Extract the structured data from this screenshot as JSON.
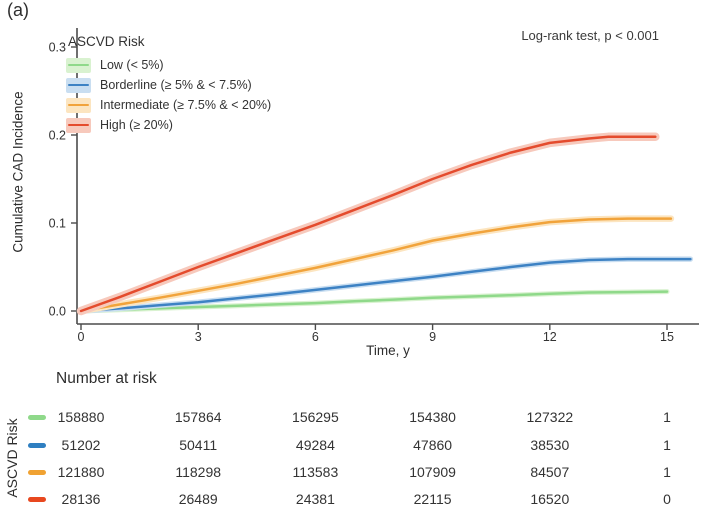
{
  "panel_label": "(a)",
  "chart_data": {
    "type": "line",
    "title": "",
    "xlabel": "Time, y",
    "ylabel": "Cumulative CAD Incidence",
    "legend_title": "ASCVD Risk",
    "legend_position": "top-left inside plot",
    "annotation": "Log-rank test, p < 0.001",
    "xlim": [
      0,
      15.8
    ],
    "ylim": [
      0,
      0.31
    ],
    "x_ticks": [
      "0",
      "3",
      "6",
      "9",
      "12",
      "15"
    ],
    "y_ticks": [
      "0.0",
      "0.1",
      "0.2",
      "0.3"
    ],
    "grid": false,
    "series": [
      {
        "name": "Low (< 5%)",
        "key": "low",
        "line_color": "#8fd98a",
        "band_color": "#d9f2d0",
        "points": [
          [
            0,
            0
          ],
          [
            1,
            0.0015
          ],
          [
            2,
            0.003
          ],
          [
            3,
            0.0045
          ],
          [
            4,
            0.006
          ],
          [
            5,
            0.0075
          ],
          [
            6,
            0.009
          ],
          [
            7,
            0.011
          ],
          [
            8,
            0.013
          ],
          [
            9,
            0.015
          ],
          [
            10,
            0.0165
          ],
          [
            11,
            0.018
          ],
          [
            12,
            0.0195
          ],
          [
            13,
            0.021
          ],
          [
            14,
            0.0215
          ],
          [
            15,
            0.022
          ]
        ]
      },
      {
        "name": "Borderline (≥ 5% & < 7.5%)",
        "key": "borderline",
        "line_color": "#3d82c4",
        "band_color": "#c9def1",
        "points": [
          [
            0,
            0
          ],
          [
            1,
            0.003
          ],
          [
            2,
            0.0065
          ],
          [
            3,
            0.01
          ],
          [
            4,
            0.0145
          ],
          [
            5,
            0.019
          ],
          [
            6,
            0.024
          ],
          [
            7,
            0.029
          ],
          [
            8,
            0.034
          ],
          [
            9,
            0.039
          ],
          [
            10,
            0.0445
          ],
          [
            11,
            0.05
          ],
          [
            12,
            0.055
          ],
          [
            13,
            0.058
          ],
          [
            14,
            0.059
          ],
          [
            15,
            0.059
          ],
          [
            15.6,
            0.059
          ]
        ]
      },
      {
        "name": "Intermediate (≥ 7.5% & < 20%)",
        "key": "intermediate",
        "line_color": "#f1a33b",
        "band_color": "#fce5c0",
        "points": [
          [
            0,
            0
          ],
          [
            1,
            0.0075
          ],
          [
            2,
            0.015
          ],
          [
            3,
            0.023
          ],
          [
            4,
            0.031
          ],
          [
            5,
            0.04
          ],
          [
            6,
            0.049
          ],
          [
            7,
            0.059
          ],
          [
            8,
            0.069
          ],
          [
            9,
            0.08
          ],
          [
            10,
            0.088
          ],
          [
            11,
            0.095
          ],
          [
            12,
            0.101
          ],
          [
            13,
            0.104
          ],
          [
            14,
            0.105
          ],
          [
            15.1,
            0.105
          ]
        ]
      },
      {
        "name": "High (≥ 20%)",
        "key": "high",
        "line_color": "#e44b2d",
        "band_color": "#f7c9bc",
        "points": [
          [
            0,
            0
          ],
          [
            1,
            0.016
          ],
          [
            2,
            0.033
          ],
          [
            3,
            0.05
          ],
          [
            4,
            0.066
          ],
          [
            5,
            0.082
          ],
          [
            6,
            0.098
          ],
          [
            7,
            0.115
          ],
          [
            8,
            0.132
          ],
          [
            9,
            0.15
          ],
          [
            10,
            0.166
          ],
          [
            11,
            0.18
          ],
          [
            12,
            0.191
          ],
          [
            13,
            0.196
          ],
          [
            13.5,
            0.198
          ],
          [
            14,
            0.198
          ],
          [
            14.7,
            0.198
          ]
        ]
      }
    ]
  },
  "risk_table": {
    "title": "Number at risk",
    "axis_label": "ASCVD Risk",
    "time_points": [
      0,
      3,
      6,
      9,
      12,
      15
    ],
    "rows": [
      {
        "group": "Low (< 5%)",
        "color": "#8fd98a",
        "values": [
          "158880",
          "157864",
          "156295",
          "154380",
          "127322",
          "1"
        ]
      },
      {
        "group": "Borderline (≥ 5% & < 7.5%)",
        "color": "#2f7fc1",
        "values": [
          "51202",
          "50411",
          "49284",
          "47860",
          "38530",
          "1"
        ]
      },
      {
        "group": "Intermediate (≥ 7.5% & < 20%)",
        "color": "#f0a232",
        "values": [
          "121880",
          "118298",
          "113583",
          "107909",
          "84507",
          "1"
        ]
      },
      {
        "group": "High (≥ 20%)",
        "color": "#e8481f",
        "values": [
          "28136",
          "26489",
          "24381",
          "22115",
          "16520",
          "0"
        ]
      }
    ]
  }
}
